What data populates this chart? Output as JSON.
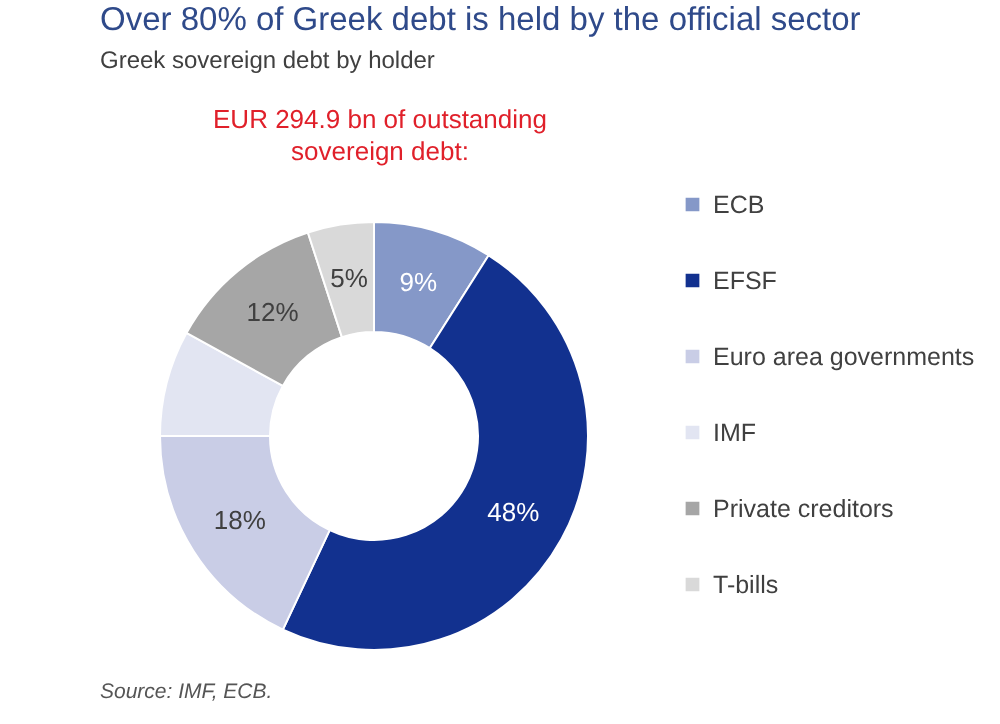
{
  "chart_data": {
    "type": "donut",
    "title": "Over 80% of Greek debt is held by the official sector",
    "subtitle": "Greek sovereign debt by holder",
    "annotations": [
      "EUR 294.9 bn of outstanding sovereign debt:",
      "Source: IMF, ECB."
    ],
    "categories": [
      "ECB",
      "EFSF",
      "Euro area governments",
      "IMF",
      "Private creditors",
      "T-bills"
    ],
    "values": [
      9,
      48,
      18,
      8,
      12,
      5
    ],
    "value_labels": [
      "9%",
      "48%",
      "18%",
      null,
      "12%",
      "5%"
    ],
    "colors": [
      "#8598c8",
      "#12318f",
      "#c9cde6",
      "#e2e5f2",
      "#a6a6a6",
      "#d9d9d9"
    ],
    "legend": "right"
  }
}
